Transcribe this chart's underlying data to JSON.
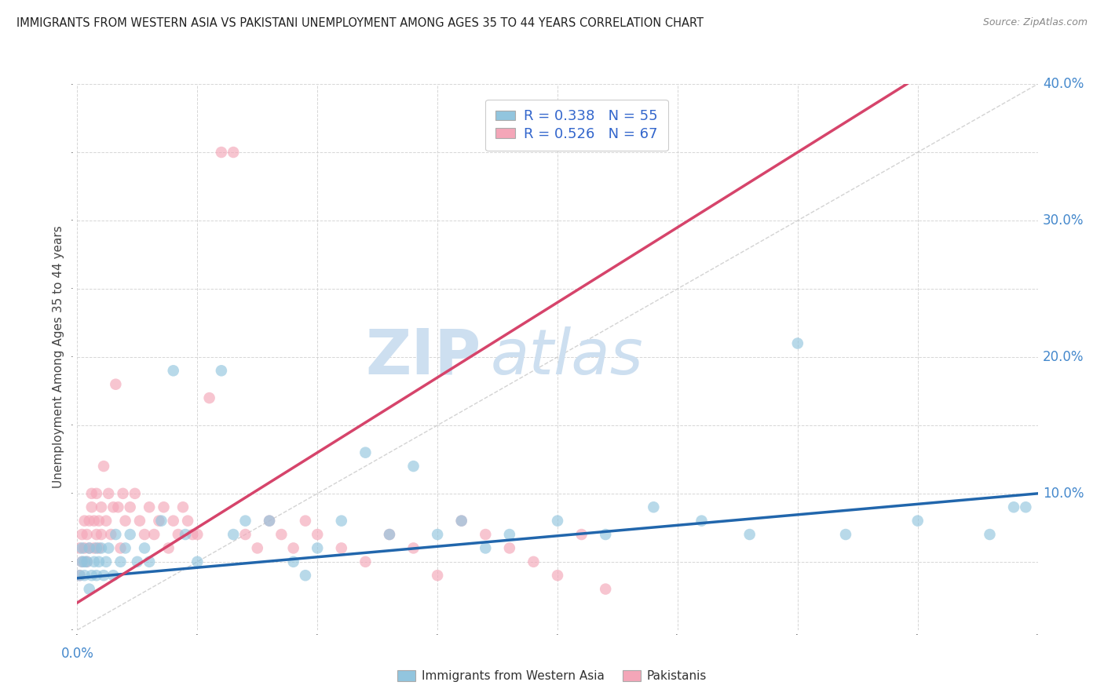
{
  "title": "IMMIGRANTS FROM WESTERN ASIA VS PAKISTANI UNEMPLOYMENT AMONG AGES 35 TO 44 YEARS CORRELATION CHART",
  "source": "Source: ZipAtlas.com",
  "ylabel": "Unemployment Among Ages 35 to 44 years",
  "xlim": [
    0.0,
    0.4
  ],
  "ylim": [
    0.0,
    0.4
  ],
  "legend_blue_label": "R = 0.338   N = 55",
  "legend_pink_label": "R = 0.526   N = 67",
  "legend_label_blue": "Immigrants from Western Asia",
  "legend_label_pink": "Pakistanis",
  "blue_color": "#92c5de",
  "pink_color": "#f4a6b8",
  "blue_line_color": "#2166ac",
  "pink_line_color": "#d6446b",
  "diagonal_color": "#c8c8c8",
  "watermark_color": "#cddff0",
  "watermark_zip": "ZIP",
  "watermark_atlas": "atlas",
  "blue_slope": 0.155,
  "blue_intercept": 0.038,
  "pink_slope": 1.1,
  "pink_intercept": 0.02,
  "blue_x": [
    0.001,
    0.002,
    0.002,
    0.003,
    0.003,
    0.004,
    0.005,
    0.005,
    0.006,
    0.007,
    0.008,
    0.008,
    0.009,
    0.01,
    0.011,
    0.012,
    0.013,
    0.015,
    0.016,
    0.018,
    0.02,
    0.022,
    0.025,
    0.028,
    0.03,
    0.035,
    0.04,
    0.045,
    0.05,
    0.06,
    0.065,
    0.07,
    0.08,
    0.09,
    0.095,
    0.1,
    0.11,
    0.12,
    0.13,
    0.14,
    0.15,
    0.16,
    0.17,
    0.18,
    0.2,
    0.22,
    0.24,
    0.26,
    0.28,
    0.3,
    0.32,
    0.35,
    0.38,
    0.39,
    0.395
  ],
  "blue_y": [
    0.04,
    0.05,
    0.06,
    0.04,
    0.05,
    0.05,
    0.03,
    0.06,
    0.04,
    0.05,
    0.06,
    0.04,
    0.05,
    0.06,
    0.04,
    0.05,
    0.06,
    0.04,
    0.07,
    0.05,
    0.06,
    0.07,
    0.05,
    0.06,
    0.05,
    0.08,
    0.19,
    0.07,
    0.05,
    0.19,
    0.07,
    0.08,
    0.08,
    0.05,
    0.04,
    0.06,
    0.08,
    0.13,
    0.07,
    0.12,
    0.07,
    0.08,
    0.06,
    0.07,
    0.08,
    0.07,
    0.09,
    0.08,
    0.07,
    0.21,
    0.07,
    0.08,
    0.07,
    0.09,
    0.09
  ],
  "pink_x": [
    0.001,
    0.001,
    0.002,
    0.002,
    0.003,
    0.003,
    0.004,
    0.004,
    0.005,
    0.005,
    0.006,
    0.006,
    0.007,
    0.007,
    0.008,
    0.008,
    0.009,
    0.009,
    0.01,
    0.01,
    0.011,
    0.012,
    0.013,
    0.014,
    0.015,
    0.016,
    0.017,
    0.018,
    0.019,
    0.02,
    0.022,
    0.024,
    0.026,
    0.028,
    0.03,
    0.032,
    0.034,
    0.036,
    0.038,
    0.04,
    0.042,
    0.044,
    0.046,
    0.048,
    0.05,
    0.055,
    0.06,
    0.065,
    0.07,
    0.075,
    0.08,
    0.085,
    0.09,
    0.095,
    0.1,
    0.11,
    0.12,
    0.13,
    0.14,
    0.15,
    0.16,
    0.17,
    0.18,
    0.19,
    0.2,
    0.21,
    0.22
  ],
  "pink_y": [
    0.04,
    0.06,
    0.05,
    0.07,
    0.06,
    0.08,
    0.05,
    0.07,
    0.06,
    0.08,
    0.09,
    0.1,
    0.06,
    0.08,
    0.07,
    0.1,
    0.06,
    0.08,
    0.07,
    0.09,
    0.12,
    0.08,
    0.1,
    0.07,
    0.09,
    0.18,
    0.09,
    0.06,
    0.1,
    0.08,
    0.09,
    0.1,
    0.08,
    0.07,
    0.09,
    0.07,
    0.08,
    0.09,
    0.06,
    0.08,
    0.07,
    0.09,
    0.08,
    0.07,
    0.07,
    0.17,
    0.35,
    0.35,
    0.07,
    0.06,
    0.08,
    0.07,
    0.06,
    0.08,
    0.07,
    0.06,
    0.05,
    0.07,
    0.06,
    0.04,
    0.08,
    0.07,
    0.06,
    0.05,
    0.04,
    0.07,
    0.03
  ]
}
